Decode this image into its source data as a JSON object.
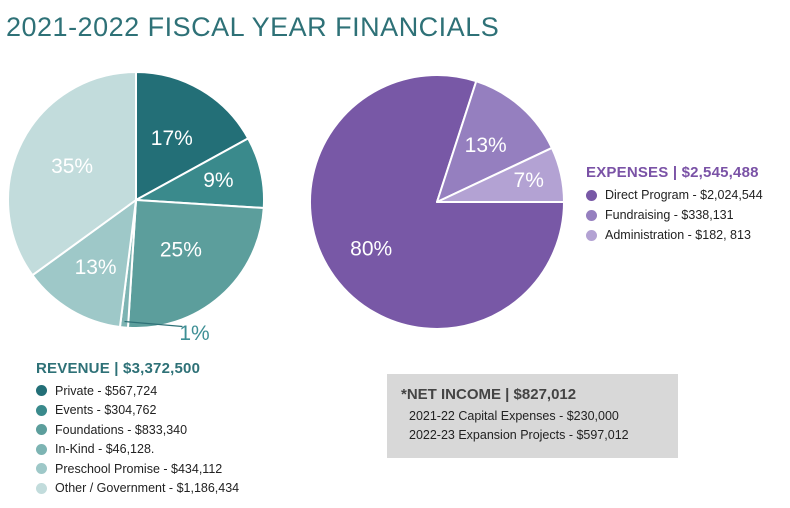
{
  "title": "2021-2022 FISCAL YEAR FINANCIALS",
  "chart_data": [
    {
      "type": "pie",
      "title": "REVENUE  |  $3,372,500",
      "slices": [
        {
          "label": "Private - $567,724",
          "value": 17,
          "display": "17%",
          "color": "#236f77"
        },
        {
          "label": "Events - $304,762",
          "value": 9,
          "display": "9%",
          "color": "#3a8a8c"
        },
        {
          "label": "Foundations - $833,340",
          "value": 25,
          "display": "25%",
          "color": "#5c9e9c"
        },
        {
          "label": "In-Kind - $46,128.",
          "value": 1,
          "display": "1%",
          "color": "#7db4b3"
        },
        {
          "label": "Preschool Promise - $434,112",
          "value": 13,
          "display": "13%",
          "color": "#9ec8c8"
        },
        {
          "label": "Other / Government - $1,186,434",
          "value": 35,
          "display": "35%",
          "color": "#c2dcdc"
        }
      ]
    },
    {
      "type": "pie",
      "title": "EXPENSES | $2,545,488",
      "slices": [
        {
          "label": "Direct Program - $2,024,544",
          "value": 80,
          "display": "80%",
          "color": "#7858a6"
        },
        {
          "label": "Fundraising  - $338,131",
          "value": 13,
          "display": "13%",
          "color": "#957fbf"
        },
        {
          "label": "Administration - $182, 813",
          "value": 7,
          "display": "7%",
          "color": "#b3a2d3"
        }
      ]
    }
  ],
  "net_income": {
    "title": "*NET INCOME | $827,012",
    "lines": [
      "2021-22 Capital Expenses - $230,000",
      "2022-23 Expansion Projects - $597,012"
    ]
  }
}
